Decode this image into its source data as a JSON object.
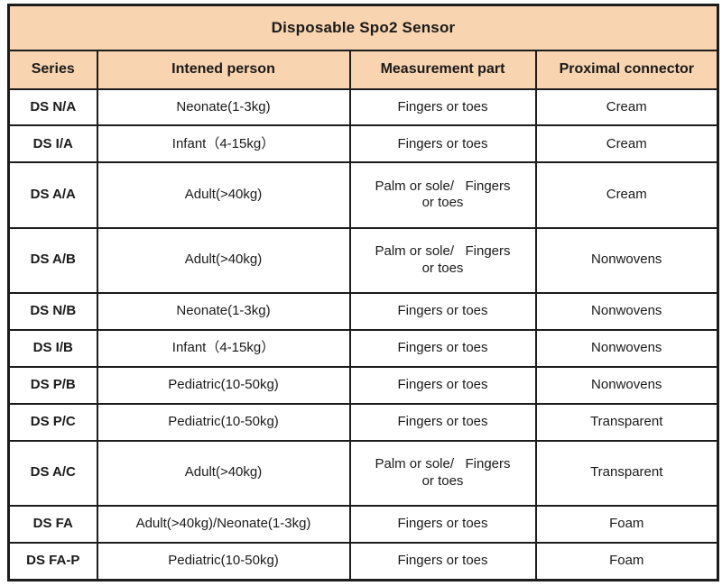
{
  "table": {
    "title": "Disposable Spo2 Sensor",
    "columns": [
      "Series",
      "Intened person",
      "Measurement part",
      "Proximal connector"
    ],
    "rows": [
      {
        "series": "DS N/A",
        "person": "Neonate(1-3kg)",
        "part": "Fingers or toes",
        "connector": "Cream"
      },
      {
        "series": "DS I/A",
        "person": "Infant（4-15kg）",
        "part": "Fingers or toes",
        "connector": "Cream"
      },
      {
        "series": "DS A/A",
        "person": "Adult(>40kg)",
        "part": "Palm or sole/   Fingers\nor toes",
        "connector": "Cream"
      },
      {
        "series": "DS A/B",
        "person": "Adult(>40kg)",
        "part": "Palm or sole/   Fingers\nor toes",
        "connector": "Nonwovens"
      },
      {
        "series": "DS N/B",
        "person": "Neonate(1-3kg)",
        "part": "Fingers or toes",
        "connector": "Nonwovens"
      },
      {
        "series": "DS I/B",
        "person": "Infant（4-15kg）",
        "part": "Fingers or toes",
        "connector": "Nonwovens"
      },
      {
        "series": "DS P/B",
        "person": "Pediatric(10-50kg)",
        "part": "Fingers or toes",
        "connector": "Nonwovens"
      },
      {
        "series": "DS P/C",
        "person": "Pediatric(10-50kg)",
        "part": "Fingers or toes",
        "connector": "Transparent"
      },
      {
        "series": "DS A/C",
        "person": "Adult(>40kg)",
        "part": "Palm or sole/   Fingers\nor toes",
        "connector": "Transparent"
      },
      {
        "series": "DS FA",
        "person": "Adult(>40kg)/Neonate(1-3kg)",
        "part": "Fingers or toes",
        "connector": "Foam"
      },
      {
        "series": "DS FA-P",
        "person": "Pediatric(10-50kg)",
        "part": "Fingers or toes",
        "connector": "Foam"
      }
    ],
    "colors": {
      "header_bg": "#f8d4b0",
      "border": "#1c1c1c",
      "text": "#1a1a1a",
      "row_bg": "#ffffff"
    }
  }
}
